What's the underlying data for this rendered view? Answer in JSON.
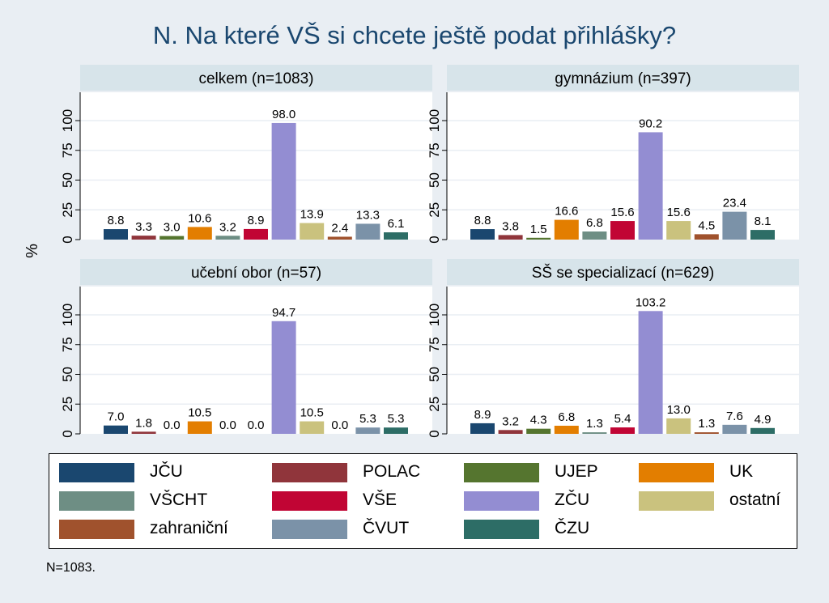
{
  "title": "N. Na které VŠ si chcete ještě podat přihlášky?",
  "note": "N=1083.",
  "chart_data": {
    "type": "bar",
    "title": "N. Na které VŠ si chcete ještě podat přihlášky?",
    "ylabel": "%",
    "xlabel": "",
    "ylim": [
      0,
      110
    ],
    "yticks": [
      "0",
      "25",
      "50",
      "75",
      "100"
    ],
    "grid": true,
    "legend_position": "bottom",
    "categories": [
      "JČU",
      "POLAC",
      "UJEP",
      "UK",
      "VŠCHT",
      "VŠE",
      "ZČU",
      "ostatní",
      "zahraniční",
      "ČVUT",
      "ČZU"
    ],
    "colors": [
      "#1a476f",
      "#90353b",
      "#55752f",
      "#e37e00",
      "#6e8e84",
      "#c10534",
      "#938dd2",
      "#cac27e",
      "#a0522d",
      "#7b92a8",
      "#2d6d66"
    ],
    "panels": [
      {
        "title": "celkem (n=1083)",
        "values": [
          8.8,
          3.3,
          3.0,
          10.6,
          3.2,
          8.9,
          98.0,
          13.9,
          2.4,
          13.3,
          6.1
        ],
        "labels": [
          "8.8",
          "3.3",
          "3.0",
          "10.6",
          "3.2",
          "8.9",
          "98.0",
          "13.9",
          "2.4",
          "13.3",
          "6.1"
        ]
      },
      {
        "title": "gymnázium (n=397)",
        "values": [
          8.8,
          3.8,
          1.5,
          16.6,
          6.8,
          15.6,
          90.2,
          15.6,
          4.5,
          23.4,
          8.1
        ],
        "labels": [
          "8.8",
          "3.8",
          "1.5",
          "16.6",
          "6.8",
          "15.6",
          "90.2",
          "15.6",
          "4.5",
          "23.4",
          "8.1"
        ]
      },
      {
        "title": "učební obor (n=57)",
        "values": [
          7.0,
          1.8,
          0.0,
          10.5,
          0.0,
          0.0,
          94.7,
          10.5,
          0.0,
          5.3,
          5.3
        ],
        "labels": [
          "7.0",
          "1.8",
          "0.0",
          "10.5",
          "0.0",
          "0.0",
          "94.7",
          "10.5",
          "0.0",
          "5.3",
          "5.3"
        ]
      },
      {
        "title": "SŠ se specializací (n=629)",
        "values": [
          8.9,
          3.2,
          4.3,
          6.8,
          1.3,
          5.4,
          103.2,
          13.0,
          1.3,
          7.6,
          4.9
        ],
        "labels": [
          "8.9",
          "3.2",
          "4.3",
          "6.8",
          "1.3",
          "5.4",
          "103.2",
          "13.0",
          "1.3",
          "7.6",
          "4.9"
        ]
      }
    ]
  },
  "legend": {
    "items": [
      {
        "label": "JČU",
        "color": "#1a476f"
      },
      {
        "label": "POLAC",
        "color": "#90353b"
      },
      {
        "label": "UJEP",
        "color": "#55752f"
      },
      {
        "label": "UK",
        "color": "#e37e00"
      },
      {
        "label": "VŠCHT",
        "color": "#6e8e84"
      },
      {
        "label": "VŠE",
        "color": "#c10534"
      },
      {
        "label": "ZČU",
        "color": "#938dd2"
      },
      {
        "label": "ostatní",
        "color": "#cac27e"
      },
      {
        "label": "zahraniční",
        "color": "#a0522d"
      },
      {
        "label": "ČVUT",
        "color": "#7b92a8"
      },
      {
        "label": "ČZU",
        "color": "#2d6d66"
      }
    ]
  }
}
